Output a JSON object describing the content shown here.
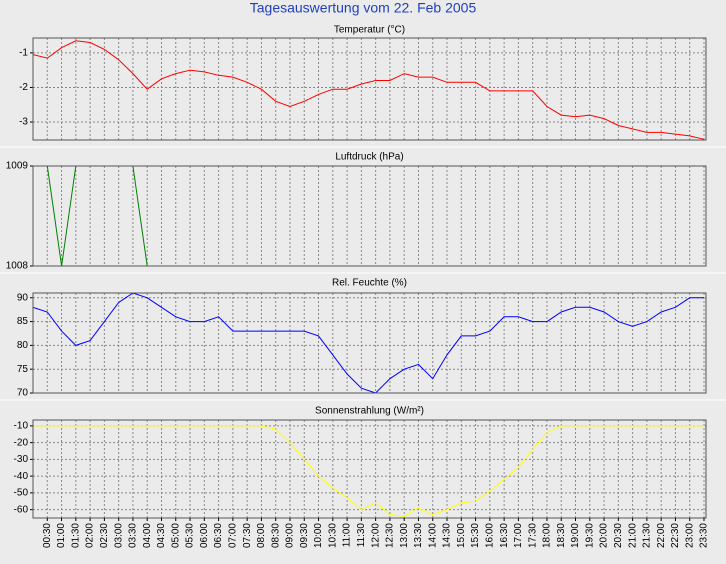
{
  "title": "Tagesauswertung vom 22. Feb 2005",
  "chart_data": [
    {
      "type": "line",
      "title": "Temperatur (°C)",
      "color": "#ff0000",
      "values": [
        -1.05,
        -1.15,
        -0.85,
        -0.65,
        -0.7,
        -0.9,
        -1.2,
        -1.6,
        -2.05,
        -1.75,
        -1.6,
        -1.5,
        -1.55,
        -1.65,
        -1.7,
        -1.85,
        -2.05,
        -2.4,
        -2.55,
        -2.4,
        -2.2,
        -2.05,
        -2.05,
        -1.9,
        -1.8,
        -1.8,
        -1.6,
        -1.7,
        -1.7,
        -1.85,
        -1.85,
        -1.85,
        -2.1,
        -2.1,
        -2.1,
        -2.1,
        -2.55,
        -2.8,
        -2.85,
        -2.8,
        -2.9,
        -3.1,
        -3.2,
        -3.3,
        -3.3,
        -3.35,
        -3.4,
        -3.5
      ],
      "ylim": [
        -3.52,
        -0.57
      ],
      "yticks": [
        -1,
        -2,
        -3
      ],
      "grid": true
    },
    {
      "type": "line",
      "title": "Luftdruck (hPa)",
      "color": "#008000",
      "values": [
        1009,
        1009,
        1008,
        1009,
        1009,
        1009,
        1009,
        1009,
        1008,
        1008,
        1008,
        1008,
        1008,
        1008,
        1008,
        1008,
        1008,
        1008,
        1008,
        1008,
        1008,
        1008,
        1008,
        1008,
        1008,
        1008,
        1008,
        1008,
        1008,
        1008,
        1008,
        1008,
        1008,
        1008,
        1008,
        1008,
        1008,
        1008,
        1008,
        1008,
        1008,
        1008,
        1008,
        1008,
        1008,
        1008,
        1008,
        1008
      ],
      "ylim": [
        1008,
        1009
      ],
      "yticks": [
        1009,
        1008
      ],
      "grid": true
    },
    {
      "type": "line",
      "title": "Rel. Feuchte (%)",
      "color": "#0000ff",
      "values": [
        88,
        87,
        83,
        80,
        81,
        85,
        89,
        91,
        90,
        88,
        86,
        85,
        85,
        86,
        83,
        83,
        83,
        83,
        83,
        83,
        82,
        78,
        74,
        71,
        70,
        73,
        75,
        76,
        73,
        78,
        82,
        82,
        83,
        86,
        86,
        85,
        85,
        87,
        88,
        88,
        87,
        85,
        84,
        85,
        87,
        88,
        90,
        90
      ],
      "ylim": [
        70,
        91
      ],
      "yticks": [
        90,
        85,
        80,
        75,
        70
      ],
      "grid": true
    },
    {
      "type": "line",
      "title": "Sonnenstrahlung (W/m²)",
      "color": "#ffff00",
      "values": [
        -10,
        -10,
        -10,
        -10,
        -10,
        -10,
        -10,
        -10,
        -10,
        -10,
        -10,
        -10,
        -10,
        -10,
        -10,
        -10,
        -10,
        -12,
        -20,
        -30,
        -40,
        -47,
        -53,
        -60,
        -56,
        -63,
        -64,
        -59,
        -63,
        -60,
        -56,
        -55,
        -49,
        -42,
        -35,
        -24,
        -14,
        -10,
        -10,
        -10,
        -10,
        -10,
        -10,
        -10,
        -10,
        -10,
        -10,
        -10
      ],
      "ylim": [
        -65,
        -6.5
      ],
      "yticks": [
        -10,
        -20,
        -30,
        -40,
        -50,
        -60
      ],
      "grid": true,
      "categories": [
        null,
        "00:30",
        "01:00",
        "01:30",
        "02:00",
        "02:30",
        "03:00",
        "03:30",
        "04:00",
        "04:30",
        "05:00",
        "05:30",
        "06:00",
        "06:30",
        "07:00",
        "07:30",
        "08:00",
        "08:30",
        "09:00",
        "09:30",
        "10:00",
        "10:30",
        "11:00",
        "11:30",
        "12:00",
        "12:30",
        "13:00",
        "13:30",
        "14:00",
        "14:30",
        "15:00",
        "15:30",
        "16:00",
        "16:30",
        "17:00",
        "17:30",
        "18:00",
        "18:30",
        "19:00",
        "19:30",
        "20:00",
        "20:30",
        "21:00",
        "21:30",
        "22:00",
        "22:30",
        "23:00",
        "23:30"
      ]
    }
  ]
}
